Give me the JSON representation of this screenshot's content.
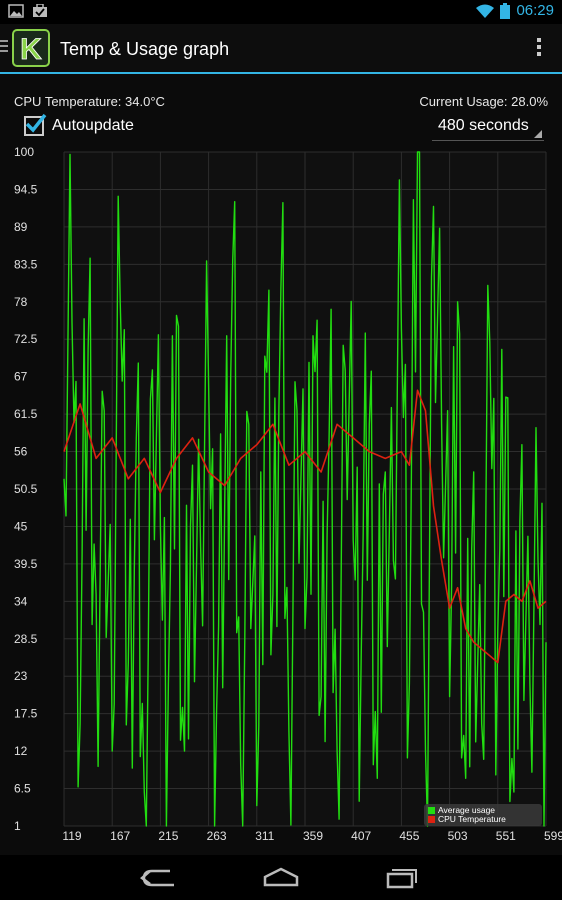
{
  "status_bar": {
    "time": "06:29",
    "left_icons": [
      "image-icon",
      "briefcase-check-icon"
    ],
    "right_icons": [
      "wifi-icon",
      "battery-icon"
    ],
    "accent": "#33b5e5"
  },
  "action_bar": {
    "title": "Temp & Usage graph",
    "logo_letter": "K",
    "accent": "#33b5e5"
  },
  "info": {
    "cpu_temperature": "CPU Temperature: 34.0°C",
    "current_usage": "Current Usage: 28.0%"
  },
  "autoupdate": {
    "label": "Autoupdate",
    "checked": true
  },
  "interval": {
    "selected": "480 seconds"
  },
  "legend": {
    "usage_label": "Average usage",
    "temp_label": "CPU Temperature"
  },
  "colors": {
    "usage": "#22dd11",
    "temperature": "#dd2211",
    "grid": "#2e2e2e"
  },
  "chart_data": {
    "type": "line",
    "title": "",
    "xlabel": "",
    "ylabel": "",
    "x_ticks": [
      119,
      167,
      215,
      263,
      311,
      359,
      407,
      455,
      503,
      551,
      599
    ],
    "y_ticks": [
      "1",
      "6.5",
      "12",
      "17.5",
      "23",
      "28.5",
      "34",
      "39.5",
      "45",
      "50.5",
      "56",
      "61.5",
      "67",
      "72.5",
      "78",
      "83.5",
      "89",
      "94.5",
      "100"
    ],
    "xlim": [
      119,
      599
    ],
    "ylim": [
      1,
      100
    ],
    "grid": true,
    "legend_position": "bottom-right",
    "series": [
      {
        "name": "Average usage",
        "x": [
          119,
          127,
          135,
          143,
          151,
          159,
          167,
          175,
          183,
          191,
          199,
          207,
          215,
          223,
          231,
          239,
          247,
          255,
          263,
          271,
          279,
          287,
          295,
          303,
          311,
          319,
          327,
          335,
          343,
          351,
          359,
          367,
          375,
          383,
          391,
          399,
          407,
          415,
          423,
          431,
          439,
          447,
          455,
          463,
          471,
          479,
          487,
          495,
          503,
          511,
          519,
          527,
          535,
          543,
          551,
          559,
          567,
          575,
          583,
          591,
          599
        ],
        "y": [
          52,
          75,
          16,
          71,
          35,
          62,
          12,
          78,
          25,
          58,
          6,
          68,
          45,
          22,
          76,
          12,
          54,
          42,
          66,
          18,
          48,
          84,
          10,
          60,
          4,
          70,
          35,
          80,
          15,
          62,
          30,
          73,
          20,
          58,
          12,
          68,
          43,
          26,
          60,
          8,
          53,
          40,
          74,
          22,
          100,
          12,
          92,
          60,
          20,
          78,
          8,
          53,
          16,
          72,
          30,
          64,
          6,
          57,
          22,
          40,
          28
        ],
        "note": "approximate envelope; original series is high-frequency noise"
      },
      {
        "name": "CPU Temperature",
        "x": [
          119,
          135,
          151,
          167,
          183,
          199,
          215,
          231,
          247,
          263,
          279,
          295,
          311,
          327,
          343,
          359,
          375,
          391,
          407,
          423,
          439,
          455,
          463,
          471,
          479,
          487,
          495,
          503,
          511,
          519,
          527,
          535,
          543,
          551,
          559,
          567,
          575,
          583,
          591,
          599
        ],
        "y": [
          56,
          63,
          55,
          58,
          52,
          55,
          50,
          55,
          58,
          53,
          51,
          55,
          57,
          60,
          54,
          56,
          53,
          60,
          58,
          56,
          55,
          56,
          54,
          65,
          62,
          48,
          40,
          33,
          36,
          30,
          28,
          27,
          26,
          25,
          34,
          35,
          34,
          37,
          33,
          34
        ]
      }
    ]
  }
}
